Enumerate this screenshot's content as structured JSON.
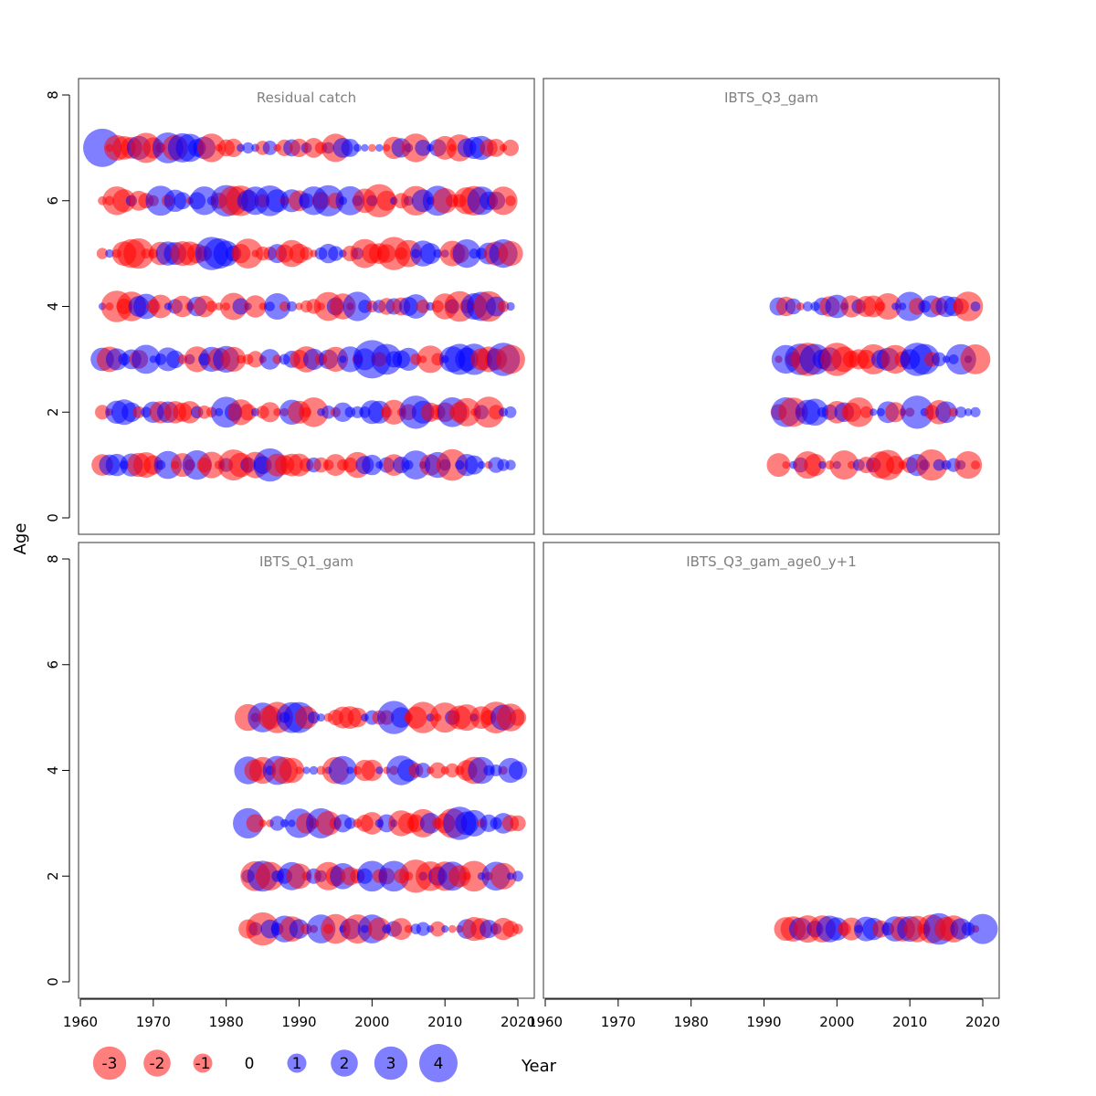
{
  "chart_data": {
    "type": "scatter",
    "subtype": "bubble-residuals",
    "xlabel": "Year",
    "ylabel": "Age",
    "xlim": [
      1960,
      2022
    ],
    "ylim": [
      0,
      8
    ],
    "x_ticks": [
      1960,
      1970,
      1980,
      1990,
      2000,
      2010,
      2020
    ],
    "y_ticks": [
      0,
      2,
      4,
      6,
      8
    ],
    "colors": {
      "positive": "#0000ff",
      "negative": "#ff0000",
      "alpha": 0.5
    },
    "legend": {
      "values": [
        -3,
        -2,
        -1,
        0,
        1,
        2,
        3,
        4
      ],
      "placement": "bottom-left"
    },
    "panels": [
      {
        "title": "Residual catch",
        "years": [
          1963,
          2019
        ],
        "ages": [
          1,
          2,
          3,
          4,
          5,
          6,
          7
        ],
        "largest": [
          {
            "year": 1963,
            "age": 7,
            "value": 4
          },
          {
            "year": 1978,
            "age": 5,
            "value": 3
          },
          {
            "year": 2000,
            "age": 3,
            "value": 4
          },
          {
            "year": 2001,
            "age": 6,
            "value": -3
          },
          {
            "year": 2003,
            "age": 5,
            "value": -3
          },
          {
            "year": 2006,
            "age": 2,
            "value": 3
          },
          {
            "year": 1986,
            "age": 1,
            "value": 3
          },
          {
            "year": 2018,
            "age": 3,
            "value": 3
          }
        ]
      },
      {
        "title": "IBTS_Q3_gam",
        "years": [
          1992,
          2019
        ],
        "ages": [
          1,
          2,
          3,
          4
        ],
        "largest": [
          {
            "year": 1996,
            "age": 3,
            "value": -3
          },
          {
            "year": 2000,
            "age": 3,
            "value": -3
          },
          {
            "year": 2011,
            "age": 2,
            "value": 3
          },
          {
            "year": 2011,
            "age": 3,
            "value": 3
          }
        ]
      },
      {
        "title": "IBTS_Q1_gam",
        "years": [
          1983,
          2020
        ],
        "ages": [
          1,
          2,
          3,
          4,
          5
        ],
        "largest": [
          {
            "year": 1985,
            "age": 1,
            "value": -3
          },
          {
            "year": 2003,
            "age": 5,
            "value": 3
          },
          {
            "year": 2006,
            "age": 2,
            "value": -3
          },
          {
            "year": 2012,
            "age": 3,
            "value": 3
          }
        ]
      },
      {
        "title": "IBTS_Q3_gam_age0_y+1",
        "years": [
          1993,
          2020
        ],
        "ages": [
          1
        ],
        "largest": [
          {
            "year": 1998,
            "age": 1,
            "value": -2
          },
          {
            "year": 2016,
            "age": 1,
            "value": -2
          }
        ]
      }
    ]
  }
}
